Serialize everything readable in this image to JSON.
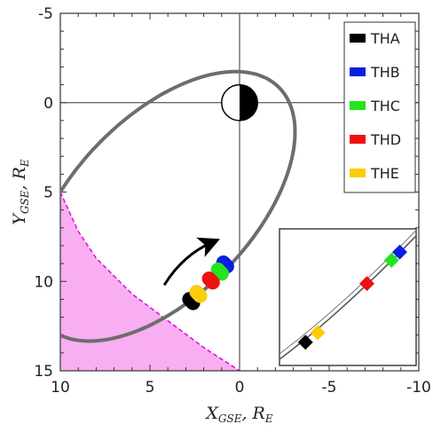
{
  "chart_data": {
    "type": "scatter",
    "xlabel_main": "X",
    "xlabel_sub": "GSE",
    "xlabel_tail": ", R",
    "xlabel_tail_sub": "E",
    "ylabel_main": "Y",
    "ylabel_sub": "GSE",
    "ylabel_tail": ", R",
    "ylabel_tail_sub": "E",
    "xlim": [
      10,
      -10
    ],
    "ylim": [
      -5,
      15
    ],
    "x_inverted": true,
    "y_inverted": true,
    "x_ticks": [
      {
        "value": 10,
        "label": "10"
      },
      {
        "value": 5,
        "label": "5"
      },
      {
        "value": 0,
        "label": "0"
      },
      {
        "value": -5,
        "label": "-5"
      },
      {
        "value": -10,
        "label": "-10"
      }
    ],
    "y_ticks": [
      {
        "value": -5,
        "label": "-5"
      },
      {
        "value": 0,
        "label": "0"
      },
      {
        "value": 5,
        "label": "5"
      },
      {
        "value": 10,
        "label": "10"
      },
      {
        "value": 15,
        "label": "15"
      }
    ],
    "grid": false,
    "crosshair_at": [
      0,
      0
    ],
    "orbit": {
      "color": "#6d6d6d",
      "center": [
        4.3,
        5.8
      ],
      "semi_major": 9.3,
      "semi_minor": 5.0,
      "tilt_deg": 46
    },
    "earth": {
      "center": [
        0,
        0
      ],
      "radius": 1.0,
      "dayside": "white",
      "nightside": "black"
    },
    "magnetopause": {
      "color": "#e600e6",
      "fill": "#f8aef0",
      "points": [
        [
          10,
          5
        ],
        [
          9,
          7.2
        ],
        [
          8,
          8.7
        ],
        [
          6,
          10.7
        ],
        [
          4,
          12.2
        ],
        [
          2,
          13.7
        ],
        [
          0,
          15
        ]
      ]
    },
    "motion_arrow": {
      "from": [
        4.2,
        10.2
      ],
      "to": [
        1.5,
        7.8
      ]
    },
    "legend_position": "top-right",
    "series": [
      {
        "name": "THA",
        "color": "#000000",
        "x": [
          2.7
        ],
        "y": [
          11.1
        ]
      },
      {
        "name": "THB",
        "color": "#0a1fe0",
        "x": [
          0.8
        ],
        "y": [
          9.05
        ]
      },
      {
        "name": "THC",
        "color": "#22e51d",
        "x": [
          1.1
        ],
        "y": [
          9.45
        ]
      },
      {
        "name": "THD",
        "color": "#f01010",
        "x": [
          1.6
        ],
        "y": [
          9.95
        ]
      },
      {
        "name": "THE",
        "color": "#fdcc0a",
        "x": [
          2.3
        ],
        "y": [
          10.7
        ]
      }
    ],
    "inset": {
      "position": "bottom-right",
      "markers": [
        {
          "series": "THA",
          "color": "#000000",
          "fx": 0.19,
          "fy": 0.83
        },
        {
          "series": "THE",
          "color": "#fdcc0a",
          "fx": 0.28,
          "fy": 0.76
        },
        {
          "series": "THD",
          "color": "#f01010",
          "fx": 0.64,
          "fy": 0.4
        },
        {
          "series": "THC",
          "color": "#22e51d",
          "fx": 0.82,
          "fy": 0.23
        },
        {
          "series": "THB",
          "color": "#0a1fe0",
          "fx": 0.88,
          "fy": 0.17
        }
      ]
    }
  }
}
